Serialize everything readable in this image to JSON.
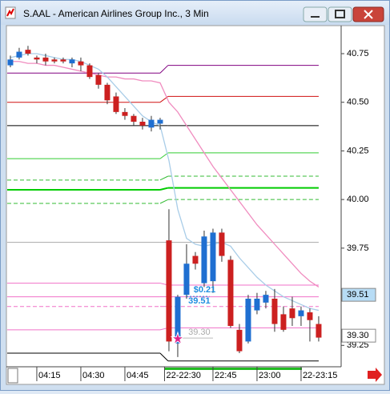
{
  "window": {
    "title": "S.AAL - American Airlines Group Inc., 3 Min"
  },
  "chart_data": {
    "type": "candlestick",
    "xlim": [
      -0.36,
      37.55
    ],
    "xticks": [
      {
        "value": 3,
        "label": "04:15"
      },
      {
        "value": 8,
        "label": "04:30"
      },
      {
        "value": 13,
        "label": "04:45"
      },
      {
        "value": 17.5,
        "label": "22-22:30"
      },
      {
        "value": 23,
        "label": "22:45"
      },
      {
        "value": 28,
        "label": "23:00"
      },
      {
        "value": 33,
        "label": "22-23:15"
      }
    ],
    "ylim": [
      39.14,
      40.89
    ],
    "yticks": [
      40.75,
      {
        "value": 40.5,
        "label": "40.50"
      },
      40.25,
      {
        "value": 40,
        "label": "40.00"
      },
      39.75,
      39.25
    ],
    "up_color": "#1f6fd1",
    "down_color": "#cc2020",
    "open": [
      40.69,
      40.73,
      40.77,
      40.73,
      40.73,
      40.72,
      40.72,
      40.7,
      40.71,
      40.69,
      40.64,
      40.59,
      40.53,
      40.45,
      40.43,
      40.4,
      40.37,
      40.39,
      39.79,
      39.26,
      39.51,
      39.71,
      39.57,
      39.58,
      39.83,
      39.69,
      39.33,
      39.27,
      39.43,
      39.47,
      39.49,
      39.41,
      39.44,
      39.4,
      39.42,
      39.36
    ],
    "high": [
      40.74,
      40.78,
      40.79,
      40.74,
      40.75,
      40.73,
      40.73,
      40.73,
      40.73,
      40.7,
      40.65,
      40.6,
      40.55,
      40.47,
      40.44,
      40.42,
      40.43,
      40.42,
      39.95,
      39.51,
      39.77,
      39.73,
      39.84,
      39.85,
      39.85,
      39.71,
      39.36,
      39.51,
      39.52,
      39.53,
      39.54,
      39.45,
      39.5,
      39.45,
      39.44,
      39.4
    ],
    "low": [
      40.68,
      40.72,
      40.74,
      40.7,
      40.69,
      40.7,
      40.7,
      40.68,
      40.66,
      40.62,
      40.57,
      40.49,
      40.44,
      40.41,
      40.38,
      40.36,
      40.35,
      40.36,
      39.22,
      39.19,
      39.49,
      39.64,
      39.55,
      39.52,
      39.68,
      39.34,
      39.21,
      39.26,
      39.41,
      39.44,
      39.32,
      39.32,
      39.35,
      39.35,
      39.27,
      39.27
    ],
    "close": [
      40.72,
      40.76,
      40.75,
      40.72,
      40.71,
      40.71,
      40.71,
      40.72,
      40.69,
      40.63,
      40.59,
      40.51,
      40.45,
      40.43,
      40.4,
      40.38,
      40.41,
      40.41,
      39.27,
      39.5,
      39.67,
      39.67,
      39.81,
      39.83,
      39.71,
      39.35,
      39.22,
      39.49,
      39.49,
      39.51,
      39.36,
      39.33,
      39.39,
      39.43,
      39.38,
      39.29
    ],
    "series": [
      {
        "color": "#f08cbf",
        "values": [
          40.71,
          40.71,
          40.7,
          40.7,
          40.69,
          40.69,
          40.68,
          40.67,
          40.66,
          40.65,
          40.64,
          40.63,
          40.63,
          40.62,
          40.62,
          40.61,
          40.61,
          40.6,
          40.5,
          40.45,
          40.38,
          40.31,
          40.24,
          40.17,
          40.11,
          40.05,
          39.99,
          39.93,
          39.87,
          39.82,
          39.77,
          39.72,
          39.67,
          39.62,
          39.58,
          39.55
        ]
      },
      {
        "color": "#a9cde8",
        "values": [
          40.73,
          40.74,
          40.75,
          40.75,
          40.74,
          40.73,
          40.72,
          40.72,
          40.71,
          40.69,
          40.67,
          40.63,
          40.58,
          40.53,
          40.48,
          40.43,
          40.4,
          40.38,
          40.2,
          39.95,
          39.8,
          39.77,
          39.76,
          39.77,
          39.78,
          39.76,
          39.7,
          39.65,
          39.6,
          39.56,
          39.53,
          39.5,
          39.48,
          39.46,
          39.44,
          39.43
        ]
      }
    ],
    "levels": [
      {
        "color": "#800080",
        "dashed": false,
        "values": [
          40.65,
          40.69
        ]
      },
      {
        "color": "#d01010",
        "dashed": false,
        "values": [
          40.5,
          40.53
        ]
      },
      {
        "color": "#000000",
        "dashed": false,
        "values": [
          40.38,
          40.38
        ]
      },
      {
        "color": "#33cc33",
        "dashed": false,
        "values": [
          40.21,
          40.24
        ]
      },
      {
        "color": "#33bb33",
        "dashed": true,
        "values": [
          40.1,
          40.12
        ]
      },
      {
        "color": "#00cc00",
        "dashed": false,
        "values": [
          40.05,
          40.06
        ]
      },
      {
        "color": "#33bb33",
        "dashed": true,
        "values": [
          39.98,
          40.0
        ]
      },
      {
        "color": "#aaaaaa",
        "dashed": false,
        "values": [
          39.78,
          39.78
        ]
      },
      {
        "color": "#f070c8",
        "dashed": false,
        "values": [
          39.57,
          39.56
        ]
      },
      {
        "color": "#f070c8",
        "dashed": false,
        "values": [
          39.5,
          39.5
        ]
      },
      {
        "color": "#f070c8",
        "dashed": true,
        "values": [
          39.45,
          39.45
        ]
      },
      {
        "color": "#f070c8",
        "dashed": false,
        "values": [
          39.33,
          39.34
        ]
      },
      {
        "color": "#000000",
        "dashed": false,
        "values": [
          39.21,
          39.17
        ]
      }
    ],
    "annotations": {
      "profit": "$0.21",
      "entry": 39.51,
      "exit": {
        "value": 39.3,
        "label": "39.30"
      }
    },
    "axis_tags": [
      {
        "value": 39.51,
        "color": "#b7dcf5"
      },
      {
        "value": {
          "value": 39.3,
          "label": "39.30"
        },
        "color": "#ffffff"
      }
    ]
  }
}
